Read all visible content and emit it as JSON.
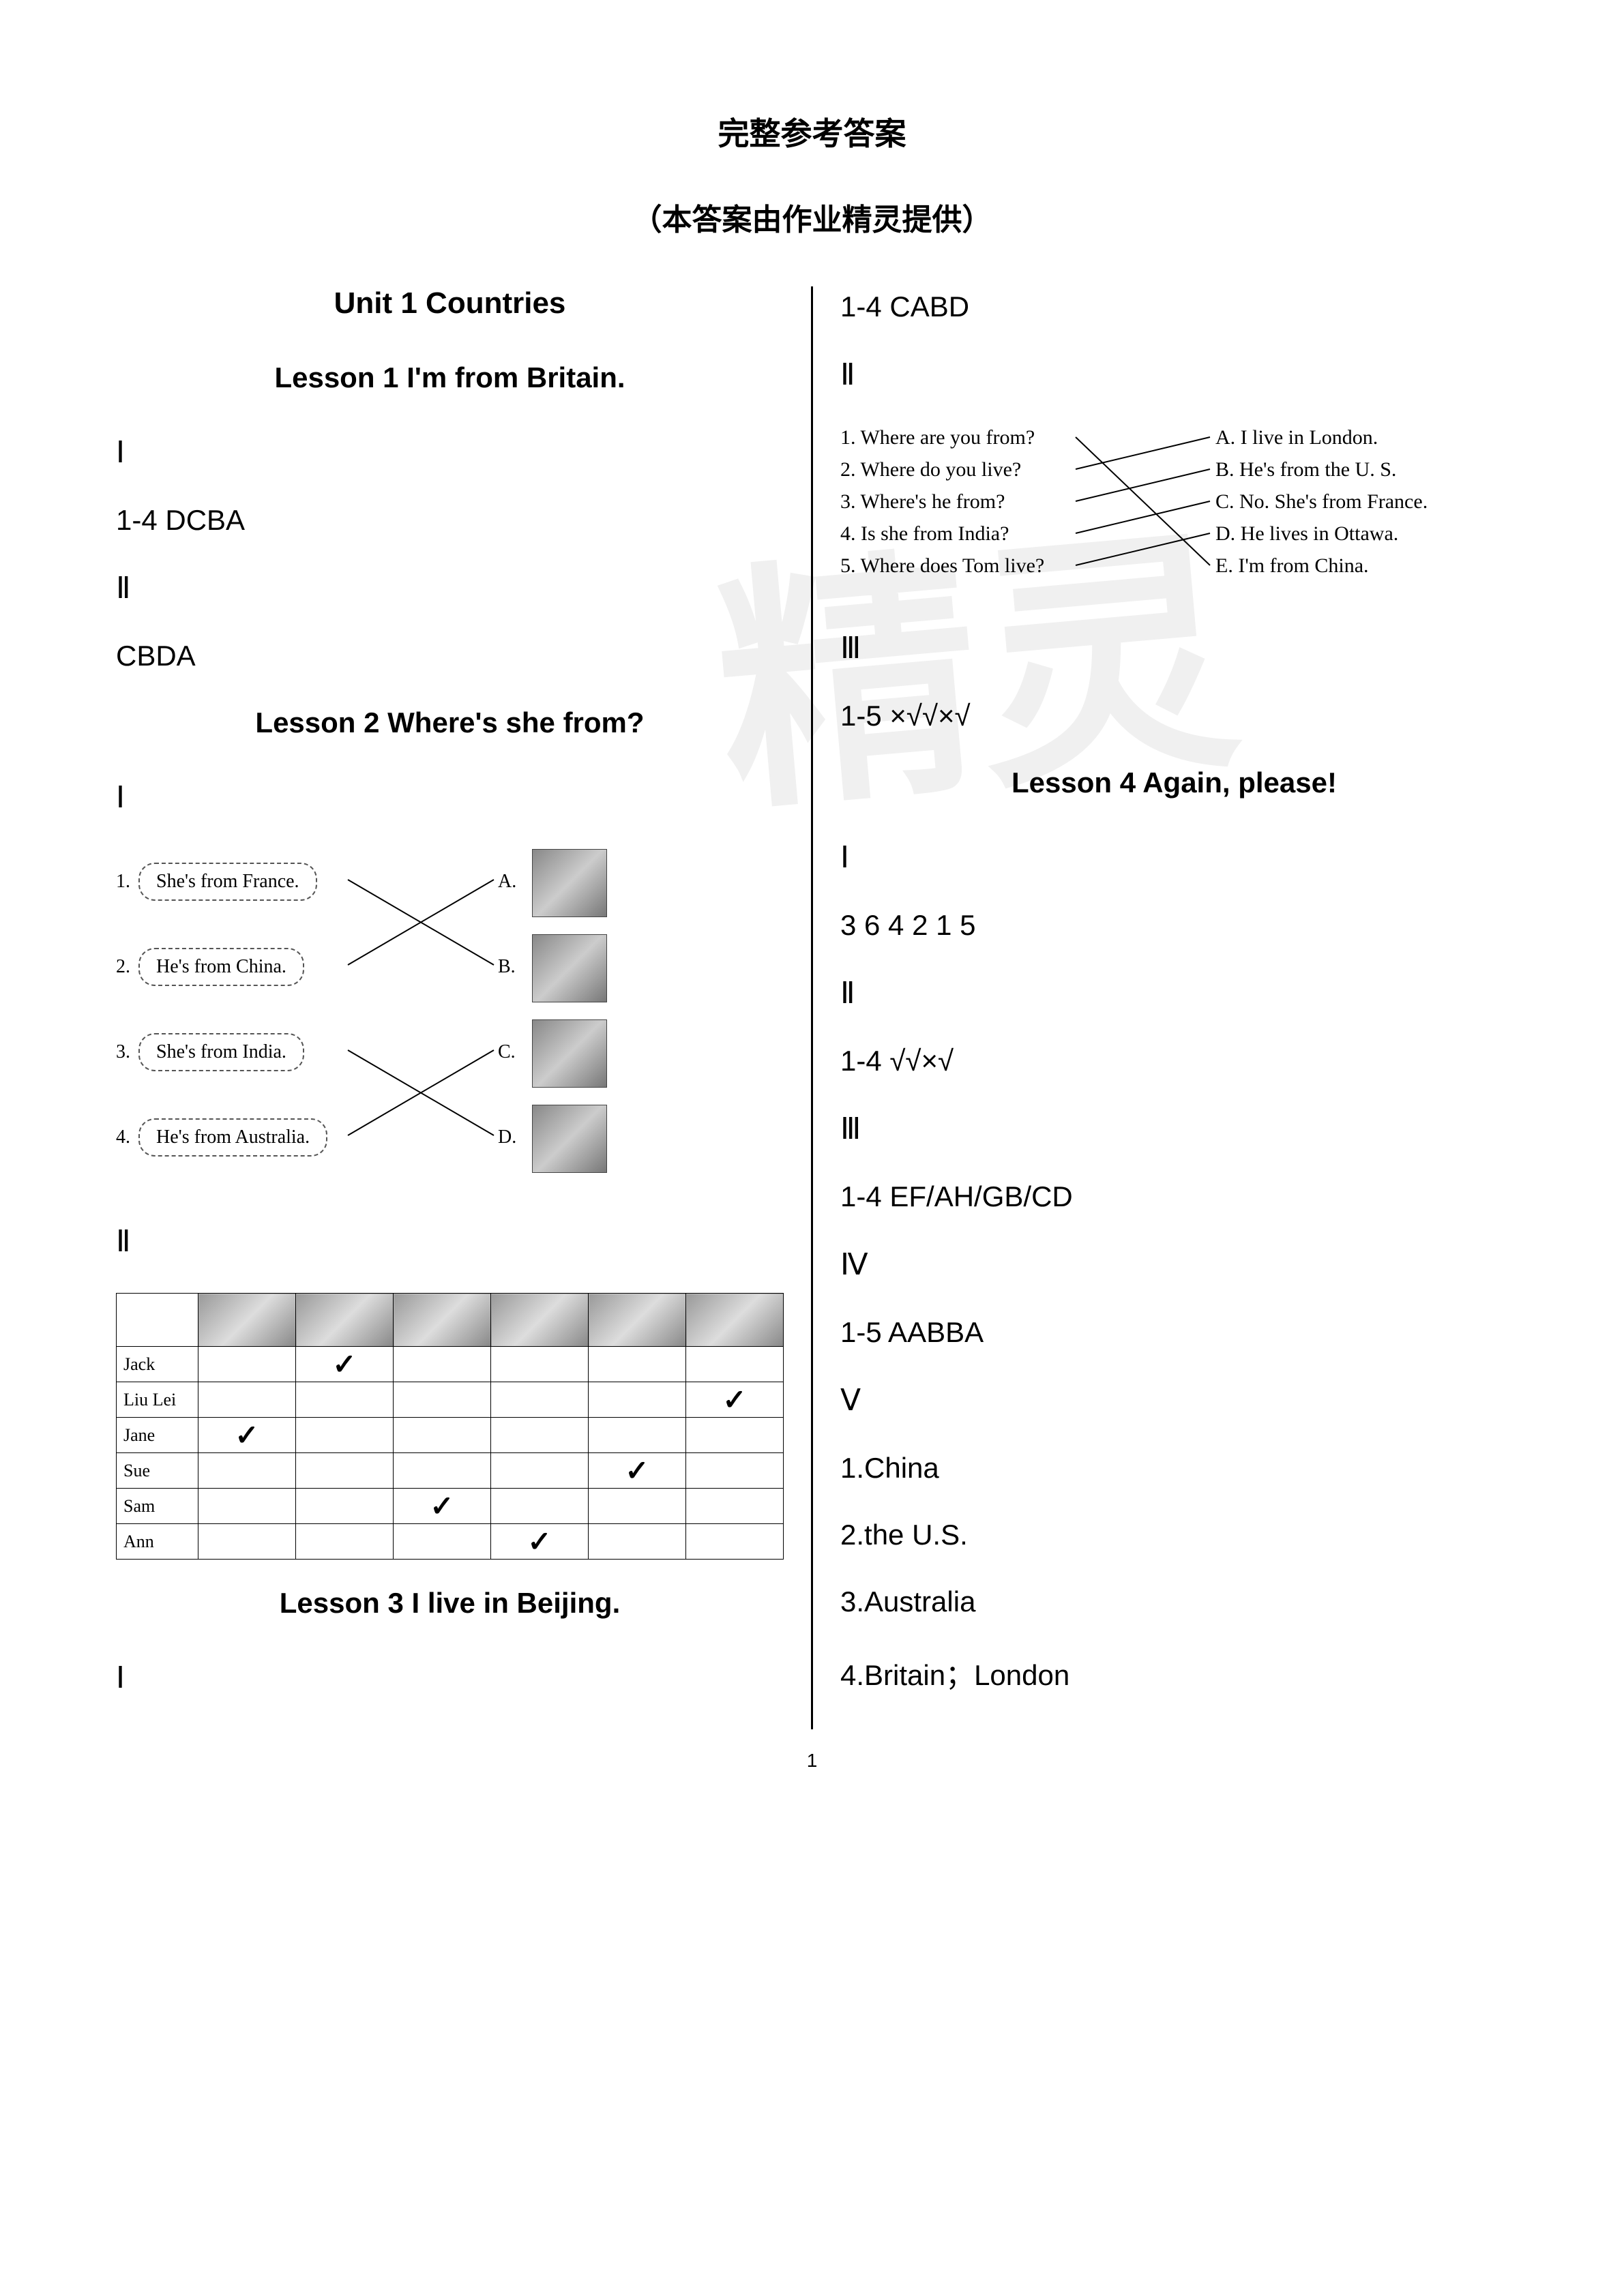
{
  "title": "完整参考答案",
  "subtitle": "（本答案由作业精灵提供）",
  "watermark": "精灵",
  "page_number": "1",
  "left": {
    "unit_title": "Unit 1 Countries",
    "lesson1": {
      "title": "Lesson 1 I'm from Britain.",
      "s1": "Ⅰ",
      "a1": "1-4 DCBA",
      "s2": "Ⅱ",
      "a2": "CBDA"
    },
    "lesson2": {
      "title": "Lesson 2 Where's she from?",
      "s1": "Ⅰ",
      "match": {
        "items": [
          {
            "num": "1.",
            "text": "She's from France.",
            "letter": "A."
          },
          {
            "num": "2.",
            "text": "He's from China.",
            "letter": "B."
          },
          {
            "num": "3.",
            "text": "She's from India.",
            "letter": "C."
          },
          {
            "num": "4.",
            "text": "He's from Australia.",
            "letter": "D."
          }
        ],
        "lines": [
          {
            "from": 0,
            "to": 1
          },
          {
            "from": 1,
            "to": 0
          },
          {
            "from": 2,
            "to": 3
          },
          {
            "from": 3,
            "to": 2
          }
        ]
      },
      "s2": "Ⅱ",
      "table": {
        "names": [
          "Jack",
          "Liu Lei",
          "Jane",
          "Sue",
          "Sam",
          "Ann"
        ],
        "cols": 6,
        "checks": {
          "Jack": 1,
          "Liu Lei": 5,
          "Jane": 0,
          "Sue": 4,
          "Sam": 2,
          "Ann": 3
        }
      }
    },
    "lesson3": {
      "title": "Lesson 3 I live in Beijing.",
      "s1": "Ⅰ"
    }
  },
  "right": {
    "top_answer": "1-4 CABD",
    "s2": "Ⅱ",
    "match": {
      "left": [
        "1.  Where are you from?",
        "2.  Where do you live?",
        "3.  Where's he from?",
        "4.  Is she from India?",
        "5.  Where does Tom live?"
      ],
      "right": [
        "A.  I live in London.",
        "B.  He's from the U. S.",
        "C.  No. She's from France.",
        "D.  He lives in Ottawa.",
        "E.  I'm from China."
      ],
      "lines": [
        {
          "from": 0,
          "to": 4
        },
        {
          "from": 1,
          "to": 0
        },
        {
          "from": 2,
          "to": 1
        },
        {
          "from": 3,
          "to": 2
        },
        {
          "from": 4,
          "to": 3
        }
      ]
    },
    "s3": "Ⅲ",
    "a3": "1-5  ×√√×√",
    "lesson4": {
      "title": "Lesson 4 Again, please!",
      "s1": "Ⅰ",
      "a1": "3 6 4 2 1 5",
      "s2": "Ⅱ",
      "a2": "1-4  √√×√",
      "s3": "Ⅲ",
      "a3": "1-4 EF/AH/GB/CD",
      "s4": "Ⅳ",
      "a4": "1-5 AABBA",
      "s5": "Ⅴ",
      "v1": "1.China",
      "v2": "2.the U.S.",
      "v3": "3.Australia",
      "v4": "4.Britain；London"
    }
  }
}
